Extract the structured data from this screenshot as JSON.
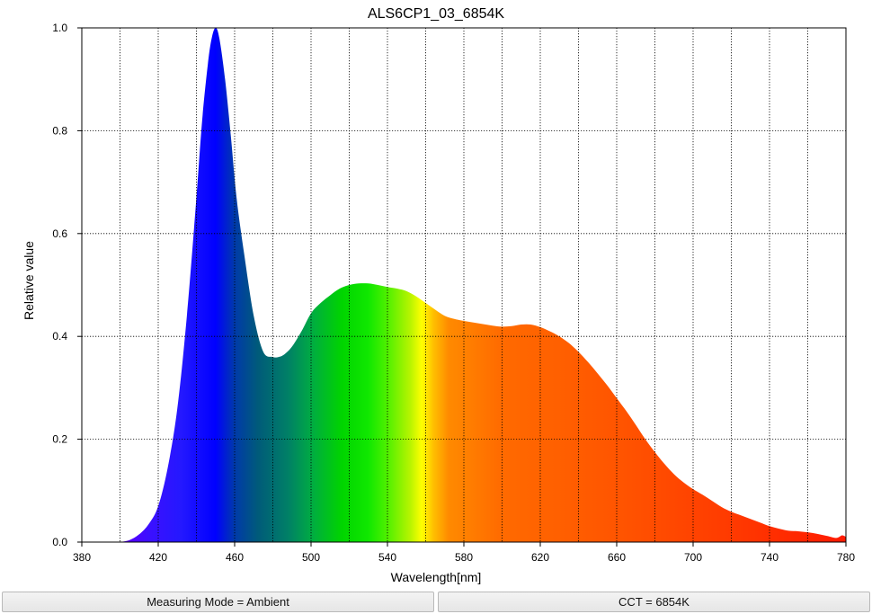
{
  "chart_data": {
    "type": "area",
    "title": "ALS6CP1_03_6854K",
    "xlabel": "Wavelength[nm]",
    "ylabel": "Relative value",
    "xlim": [
      380,
      780
    ],
    "ylim": [
      0,
      1.0
    ],
    "x_ticks": [
      380,
      420,
      460,
      500,
      540,
      580,
      620,
      660,
      700,
      740,
      780
    ],
    "y_ticks": [
      0.0,
      0.2,
      0.4,
      0.6,
      0.8,
      1.0
    ],
    "y_tick_labels": [
      "0.0",
      "0.2",
      "0.4",
      "0.6",
      "0.8",
      "1.0"
    ],
    "grid": true,
    "fill": "visible-spectrum-gradient",
    "x": [
      400,
      405,
      410,
      415,
      420,
      425,
      430,
      435,
      440,
      443,
      446,
      448,
      450,
      452,
      455,
      458,
      461,
      465,
      470,
      475,
      480,
      483,
      486,
      490,
      495,
      500,
      505,
      510,
      515,
      520,
      525,
      530,
      535,
      540,
      545,
      550,
      555,
      560,
      565,
      570,
      575,
      580,
      585,
      590,
      595,
      600,
      605,
      610,
      615,
      620,
      625,
      630,
      635,
      640,
      645,
      650,
      655,
      660,
      665,
      670,
      675,
      680,
      685,
      690,
      695,
      700,
      705,
      710,
      715,
      720,
      725,
      730,
      735,
      740,
      745,
      750,
      755,
      760,
      765,
      770,
      775,
      778,
      780
    ],
    "y": [
      0.0,
      0.004,
      0.015,
      0.035,
      0.07,
      0.145,
      0.26,
      0.44,
      0.67,
      0.82,
      0.93,
      0.98,
      1.0,
      0.98,
      0.9,
      0.79,
      0.67,
      0.56,
      0.44,
      0.37,
      0.36,
      0.36,
      0.365,
      0.38,
      0.41,
      0.445,
      0.465,
      0.48,
      0.493,
      0.5,
      0.503,
      0.503,
      0.5,
      0.496,
      0.493,
      0.488,
      0.478,
      0.465,
      0.452,
      0.44,
      0.434,
      0.43,
      0.427,
      0.424,
      0.421,
      0.419,
      0.42,
      0.423,
      0.423,
      0.418,
      0.41,
      0.4,
      0.387,
      0.37,
      0.35,
      0.328,
      0.305,
      0.28,
      0.255,
      0.228,
      0.2,
      0.175,
      0.152,
      0.132,
      0.116,
      0.103,
      0.092,
      0.08,
      0.068,
      0.059,
      0.052,
      0.045,
      0.038,
      0.031,
      0.026,
      0.022,
      0.021,
      0.019,
      0.016,
      0.012,
      0.008,
      0.013,
      0.01
    ]
  },
  "status": {
    "mode": "Measuring Mode = Ambient",
    "cct": "CCT = 6854K"
  }
}
